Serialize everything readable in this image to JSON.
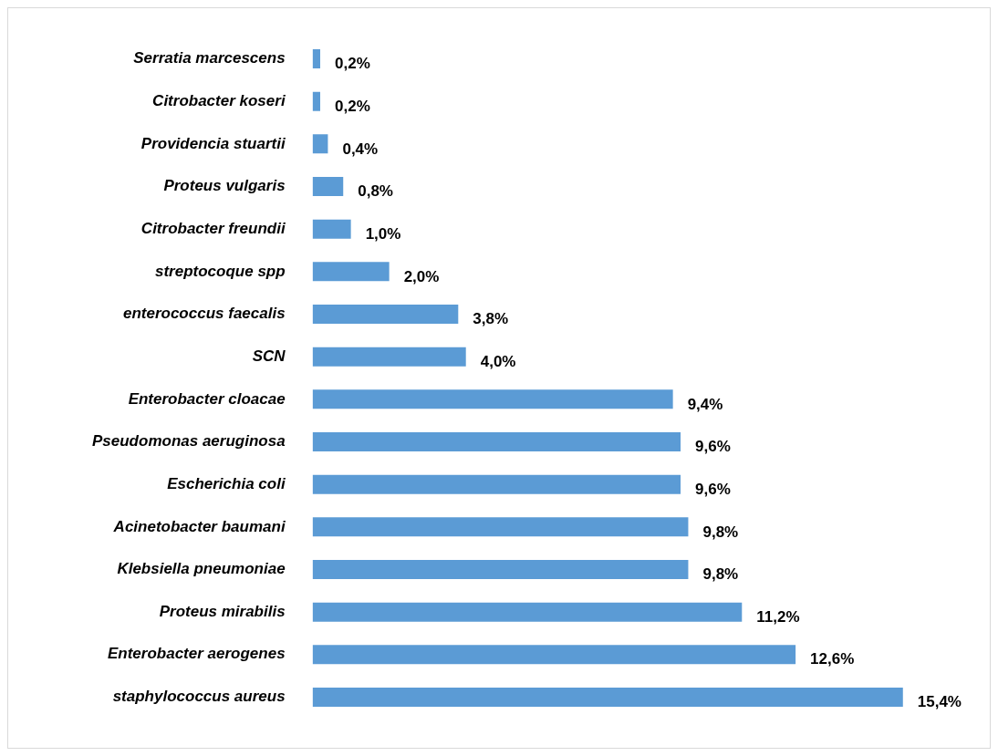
{
  "chart_data": {
    "type": "bar",
    "orientation": "horizontal",
    "categories": [
      "Serratia marcescens",
      "Citrobacter koseri",
      "Providencia stuartii",
      "Proteus vulgaris",
      "Citrobacter freundii",
      "streptocoque spp",
      "enterococcus faecalis",
      "SCN",
      "Enterobacter cloacae",
      "Pseudomonas aeruginosa",
      "Escherichia coli",
      "Acinetobacter baumani",
      "Klebsiella pneumoniae",
      "Proteus mirabilis",
      "Enterobacter aerogenes",
      "staphylococcus aureus"
    ],
    "values": [
      0.2,
      0.2,
      0.4,
      0.8,
      1.0,
      2.0,
      3.8,
      4.0,
      9.4,
      9.6,
      9.6,
      9.8,
      9.8,
      11.2,
      12.6,
      15.4
    ],
    "value_labels": [
      "0,2%",
      "0,2%",
      "0,4%",
      "0,8%",
      "1,0%",
      "2,0%",
      "3,8%",
      "4,0%",
      "9,4%",
      "9,6%",
      "9,6%",
      "9,8%",
      "9,8%",
      "11,2%",
      "12,6%",
      "15,4%"
    ],
    "color": "#5b9bd5",
    "tick_labels": "y",
    "legend": false
  }
}
